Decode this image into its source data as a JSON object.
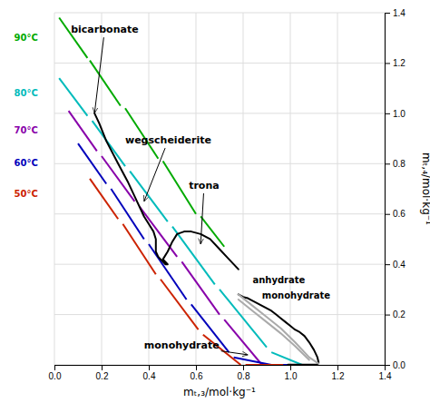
{
  "chart_data": {
    "type": "line",
    "x_label": "mₜ,₃/mol·kg⁻¹",
    "y_label": "mₜ,₄/mol·kg⁻¹",
    "xlim": [
      0.0,
      1.4
    ],
    "ylim": [
      0.0,
      1.4
    ],
    "xticks": [
      {
        "value": 0.0,
        "label": "0.0"
      },
      0.2,
      0.4,
      0.6,
      0.8,
      {
        "value": 1.0,
        "label": "1.0"
      },
      1.2,
      1.4
    ],
    "yticks": [
      {
        "value": 0.0,
        "label": "0.0"
      },
      0.2,
      0.4,
      0.6,
      0.8,
      {
        "value": 1.0,
        "label": "1.0"
      },
      1.2,
      1.4
    ],
    "grid": true,
    "series": [
      {
        "color": "#00aa00",
        "line_style": "broken",
        "x": [
          0.02,
          0.14,
          0.15,
          0.28,
          0.3,
          0.44,
          0.46,
          0.6,
          0.62,
          0.72
        ],
        "values": [
          1.38,
          1.22,
          1.21,
          1.03,
          1.02,
          0.82,
          0.81,
          0.6,
          0.59,
          0.47
        ]
      },
      {
        "color": "#00bbbb",
        "line_style": "broken",
        "x": [
          0.02,
          0.14,
          0.16,
          0.3,
          0.32,
          0.48,
          0.5,
          0.68,
          0.7,
          0.9,
          0.92,
          1.05
        ],
        "values": [
          1.14,
          0.99,
          0.97,
          0.79,
          0.77,
          0.57,
          0.55,
          0.32,
          0.3,
          0.07,
          0.05,
          0.0
        ]
      },
      {
        "color": "#8800aa",
        "line_style": "broken",
        "x": [
          0.06,
          0.18,
          0.2,
          0.34,
          0.36,
          0.52,
          0.54,
          0.7,
          0.72,
          0.88,
          0.9,
          1.0
        ],
        "values": [
          1.01,
          0.85,
          0.83,
          0.65,
          0.63,
          0.43,
          0.41,
          0.2,
          0.18,
          0.0,
          0.0,
          0.0
        ]
      },
      {
        "color": "#0000bb",
        "line_style": "broken",
        "x": [
          0.1,
          0.22,
          0.24,
          0.38,
          0.4,
          0.56,
          0.58,
          0.74,
          0.76,
          0.92,
          0.94,
          1.05
        ],
        "values": [
          0.88,
          0.72,
          0.7,
          0.5,
          0.48,
          0.26,
          0.24,
          0.05,
          0.03,
          0.0,
          0.0,
          0.0
        ]
      },
      {
        "color": "#cc2200",
        "line_style": "broken",
        "x": [
          0.15,
          0.27,
          0.29,
          0.43,
          0.45,
          0.61,
          0.63,
          0.79,
          0.81,
          0.97,
          0.99,
          1.1
        ],
        "values": [
          0.74,
          0.58,
          0.56,
          0.36,
          0.34,
          0.14,
          0.12,
          0.0,
          0.0,
          0.0,
          0.0,
          0.0
        ]
      },
      {
        "color": "#000000",
        "line_style": "solid",
        "x": [
          0.17,
          0.19,
          0.22,
          0.27,
          0.31,
          0.35,
          0.38,
          0.4,
          0.42,
          0.43,
          0.43,
          0.43,
          0.44,
          0.45,
          0.46,
          0.47,
          0.48,
          0.46,
          0.48,
          0.5,
          0.52,
          0.55,
          0.58,
          0.62,
          0.66,
          0.7,
          0.74,
          0.78
        ],
        "values": [
          1.0,
          0.96,
          0.89,
          0.8,
          0.73,
          0.65,
          0.59,
          0.56,
          0.53,
          0.5,
          0.47,
          0.45,
          0.43,
          0.42,
          0.41,
          0.4,
          0.4,
          0.42,
          0.45,
          0.49,
          0.52,
          0.53,
          0.53,
          0.52,
          0.5,
          0.46,
          0.42,
          0.38
        ]
      },
      {
        "color": "#000000",
        "line_style": "solid",
        "x": [
          0.78,
          0.8,
          0.82,
          0.84,
          0.86,
          0.88,
          0.9,
          0.92,
          0.94,
          0.96,
          0.98,
          1.0,
          1.02,
          1.02,
          1.04,
          1.06,
          1.08,
          1.1,
          1.115,
          1.12,
          1.115,
          1.1,
          1.08,
          1.05,
          1.02,
          0.99
        ],
        "values": [
          0.28,
          0.27,
          0.265,
          0.255,
          0.245,
          0.235,
          0.225,
          0.215,
          0.2,
          0.185,
          0.17,
          0.155,
          0.14,
          0.14,
          0.13,
          0.115,
          0.09,
          0.06,
          0.03,
          0.01,
          0.002,
          0.001,
          0.001,
          0.001,
          0.001,
          0.001
        ]
      },
      {
        "color": "#aaaaaa",
        "line_style": "solid",
        "x": [
          0.78,
          0.84,
          0.9,
          0.96,
          1.02,
          1.08,
          1.12
        ],
        "values": [
          0.28,
          0.235,
          0.19,
          0.145,
          0.09,
          0.03,
          0.005
        ]
      },
      {
        "color": "#aaaaaa",
        "line_style": "solid",
        "x": [
          0.78,
          0.84,
          0.9,
          0.96,
          1.02,
          1.08
        ],
        "values": [
          0.26,
          0.215,
          0.17,
          0.125,
          0.075,
          0.02
        ]
      }
    ],
    "annotations": [
      {
        "text": "90°C",
        "x": -0.07,
        "y": 1.3,
        "color": "#00aa00"
      },
      {
        "text": "80°C",
        "x": -0.07,
        "y": 1.08,
        "color": "#00bbbb"
      },
      {
        "text": "70°C",
        "x": -0.07,
        "y": 0.93,
        "color": "#8800aa"
      },
      {
        "text": "60°C",
        "x": -0.07,
        "y": 0.8,
        "color": "#0000bb"
      },
      {
        "text": "50°C",
        "x": -0.07,
        "y": 0.68,
        "color": "#cc2200"
      },
      {
        "text": "bicarbonate",
        "x": 0.07,
        "y": 1.32,
        "arrow_x": 0.17,
        "arrow_y": 1.0
      },
      {
        "text": "wegscheiderite",
        "x": 0.3,
        "y": 0.88,
        "arrow_x": 0.38,
        "arrow_y": 0.65
      },
      {
        "text": "trona",
        "x": 0.57,
        "y": 0.7,
        "arrow_x": 0.62,
        "arrow_y": 0.48
      },
      {
        "text": "anhydrate",
        "x": 0.84,
        "y": 0.335
      },
      {
        "text": "monohydrate",
        "x": 0.88,
        "y": 0.275
      },
      {
        "text": "monohydrate",
        "x": 0.38,
        "y": 0.065,
        "arrow_x": 0.82,
        "arrow_y": 0.04
      }
    ]
  }
}
